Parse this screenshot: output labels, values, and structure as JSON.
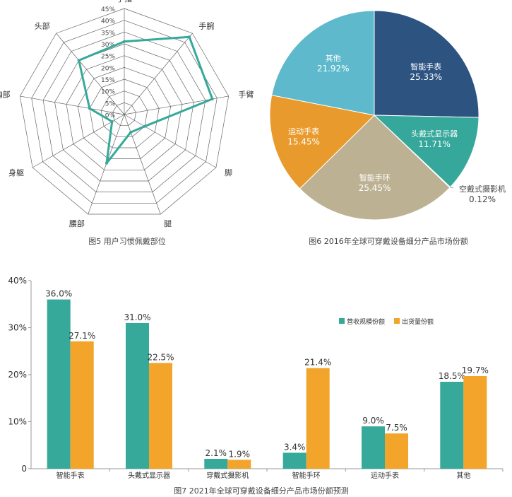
{
  "colors": {
    "teal": "#36A99B",
    "orange": "#F2A52A",
    "pie_smart_watch": "#2D5381",
    "pie_hmd": "#35A79B",
    "pie_camera": "#2F6A8A",
    "pie_band": "#BDB193",
    "pie_sport_watch": "#E99A2C",
    "pie_other": "#5DB9CB",
    "grid": "#666666"
  },
  "chart_data": [
    {
      "type": "radar",
      "caption": "图5 用户习惯佩戴部位",
      "categories": [
        "手指",
        "手腕",
        "手臂",
        "脚",
        "腿",
        "腰部",
        "身躯",
        "胸部",
        "头部"
      ],
      "values": [
        31,
        43,
        38,
        10,
        8,
        22,
        6,
        15,
        30
      ],
      "ticks": [
        "0%",
        "5%",
        "10%",
        "15%",
        "20%",
        "25%",
        "30%",
        "35%",
        "40%",
        "45%"
      ],
      "rmax": 45
    },
    {
      "type": "pie",
      "caption": "图6 2016年全球可穿戴设备细分产品市场份额",
      "slices": [
        {
          "label": "智能手表",
          "value": 25.33,
          "text": "25.33%"
        },
        {
          "label": "头戴式显示器",
          "value": 11.71,
          "text": "11.71%"
        },
        {
          "label": "空戴式摄影机",
          "value": 0.12,
          "text": "0.12%"
        },
        {
          "label": "智能手环",
          "value": 25.45,
          "text": "25.45%"
        },
        {
          "label": "运动手表",
          "value": 15.45,
          "text": "15.45%"
        },
        {
          "label": "其他",
          "value": 21.92,
          "text": "21.92%"
        }
      ]
    },
    {
      "type": "bar",
      "caption": "图7 2021年全球可穿戴设备细分产品市场份额预测",
      "categories": [
        "智能手表",
        "头戴式显示器",
        "穿戴式摄影机",
        "智能手环",
        "运动手表",
        "其他"
      ],
      "series": [
        {
          "name": "营收规模份额",
          "values": [
            36.0,
            31.0,
            2.1,
            3.4,
            9.0,
            18.5
          ],
          "labels": [
            "36.0%",
            "31.0%",
            "2.1%",
            "3.4%",
            "9.0%",
            "18.5%"
          ]
        },
        {
          "name": "出货量份额",
          "values": [
            27.1,
            22.5,
            1.9,
            21.4,
            7.5,
            19.7
          ],
          "labels": [
            "27.1%",
            "22.5%",
            "1.9%",
            "21.4%",
            "7.5%",
            "19.7%"
          ]
        }
      ],
      "yticks": [
        "0",
        "10%",
        "20%",
        "30%",
        "40%"
      ],
      "ylim": [
        0,
        40
      ],
      "legend": "top-right"
    }
  ]
}
